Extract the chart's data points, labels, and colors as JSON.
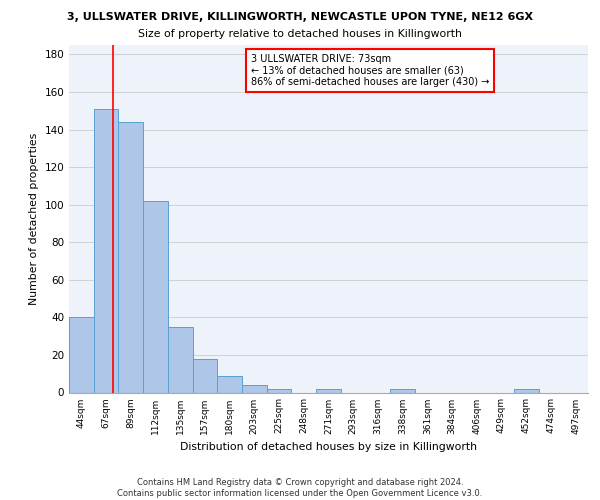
{
  "title_line1": "3, ULLSWATER DRIVE, KILLINGWORTH, NEWCASTLE UPON TYNE, NE12 6GX",
  "title_line2": "Size of property relative to detached houses in Killingworth",
  "xlabel": "Distribution of detached houses by size in Killingworth",
  "ylabel": "Number of detached properties",
  "bin_labels": [
    "44sqm",
    "67sqm",
    "89sqm",
    "112sqm",
    "135sqm",
    "157sqm",
    "180sqm",
    "203sqm",
    "225sqm",
    "248sqm",
    "271sqm",
    "293sqm",
    "316sqm",
    "338sqm",
    "361sqm",
    "384sqm",
    "406sqm",
    "429sqm",
    "452sqm",
    "474sqm",
    "497sqm"
  ],
  "bar_values": [
    40,
    151,
    144,
    102,
    35,
    18,
    9,
    4,
    2,
    0,
    2,
    0,
    0,
    2,
    0,
    0,
    0,
    0,
    2,
    0,
    0
  ],
  "bar_color": "#aec6e8",
  "bar_edge_color": "#5a9fd4",
  "red_line_x": 1.3,
  "annotation_line1": "3 ULLSWATER DRIVE: 73sqm",
  "annotation_line2": "← 13% of detached houses are smaller (63)",
  "annotation_line3": "86% of semi-detached houses are larger (430) →",
  "ylim": [
    0,
    185
  ],
  "yticks": [
    0,
    20,
    40,
    60,
    80,
    100,
    120,
    140,
    160,
    180
  ],
  "footer_text": "Contains HM Land Registry data © Crown copyright and database right 2024.\nContains public sector information licensed under the Open Government Licence v3.0.",
  "bg_color": "#eef2fa",
  "grid_color": "#cccccc"
}
